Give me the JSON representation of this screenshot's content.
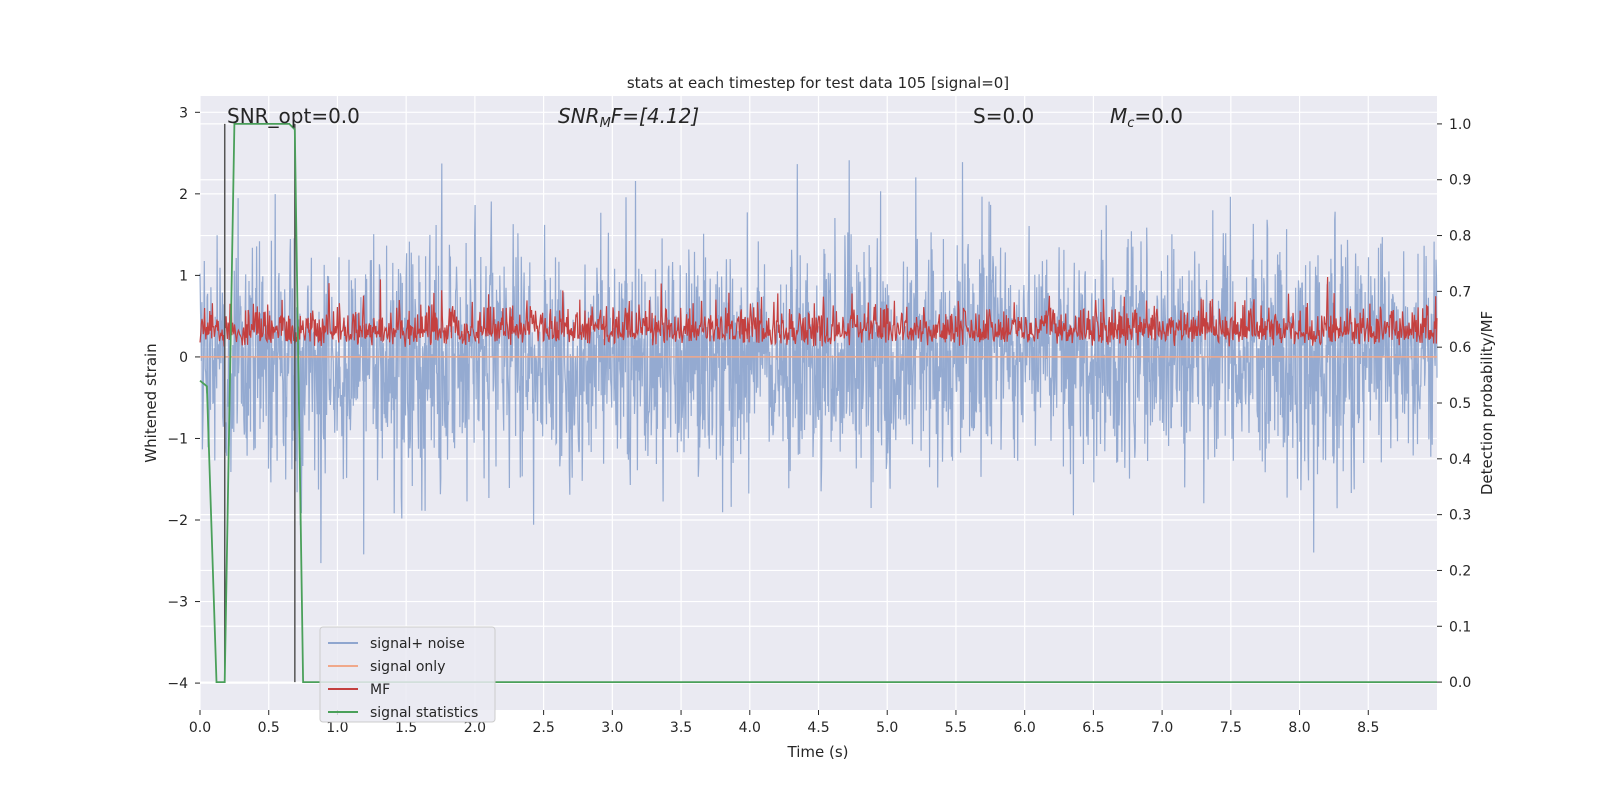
{
  "chart_data": {
    "type": "line",
    "title": "stats at each timestep for test data 105 [signal=0]",
    "xlabel": "Time (s)",
    "ylabel": "Whitened strain",
    "ylabel_right": "Detection probability/MF",
    "xlim": [
      0,
      9.0
    ],
    "ylim": [
      -4.33,
      3.2
    ],
    "ylim_right": [
      -0.05,
      1.05
    ],
    "xticks": [
      "0.0",
      "0.5",
      "1.0",
      "1.5",
      "2.0",
      "2.5",
      "3.0",
      "3.5",
      "4.0",
      "4.5",
      "5.0",
      "5.5",
      "6.0",
      "6.5",
      "7.0",
      "7.5",
      "8.0",
      "8.5"
    ],
    "yticks": [
      "3",
      "2",
      "1",
      "0",
      "−1",
      "−2",
      "−3",
      "−4"
    ],
    "yticks_right": [
      "1.0",
      "0.9",
      "0.8",
      "0.7",
      "0.6",
      "0.5",
      "0.4",
      "0.3",
      "0.2",
      "0.1",
      "0.0"
    ],
    "grid": true,
    "annotations": {
      "snr_opt": "SNR_opt=0.0",
      "snr_mf_base": "SNR",
      "snr_mf_sub": "M",
      "snr_mf_tail": "F=[4.12]",
      "s_text": "S=0.0",
      "mc_base": "M",
      "mc_sub": "c",
      "mc_tail": "=0.0"
    },
    "legend": {
      "placement": "lower-left",
      "entries": [
        {
          "label": "signal+ noise",
          "color": "#8fa6cf"
        },
        {
          "label": "signal only",
          "color": "#f0a88a"
        },
        {
          "label": "MF",
          "color": "#c4403f"
        },
        {
          "label": "signal statistics",
          "color": "#4aa05a"
        }
      ]
    },
    "series": {
      "signal_noise": {
        "color": "#8fa6cf",
        "range": [
          -2.9,
          2.85
        ],
        "typical": [
          -1.6,
          1.5
        ]
      },
      "signal_only": {
        "color": "#f0a88a",
        "values": [
          0.0,
          0.0
        ]
      },
      "mf": {
        "color": "#c4403f",
        "range": [
          0.0,
          1.0
        ]
      },
      "signal_statistics": {
        "color": "#4aa05a",
        "x": [
          0.0,
          0.05,
          0.12,
          0.18,
          0.25,
          0.65,
          0.69,
          0.75,
          9.0
        ],
        "y": [
          0.54,
          0.53,
          0.0,
          0.0,
          1.0,
          1.0,
          0.99,
          0.0,
          0.0
        ]
      }
    },
    "vlines": [
      {
        "x": 0.18,
        "color": "#555555"
      },
      {
        "x": 0.69,
        "color": "#555555"
      }
    ]
  }
}
